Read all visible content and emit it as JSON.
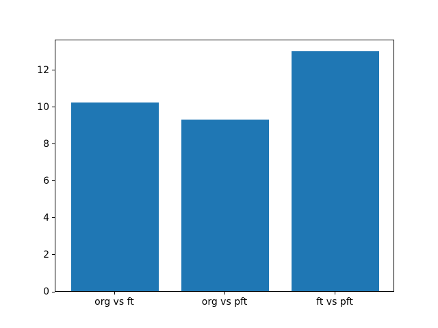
{
  "figure": {
    "background": "#ffffff",
    "axis_color": "#000000"
  },
  "chart_data": {
    "type": "bar",
    "categories": [
      "org vs ft",
      "org vs pft",
      "ft vs pft"
    ],
    "values": [
      10.2,
      9.3,
      13.0
    ],
    "title": "",
    "xlabel": "",
    "ylabel": "",
    "yticks": [
      0,
      2,
      4,
      6,
      8,
      10,
      12
    ],
    "ylim": [
      0,
      13.65
    ],
    "bar_color": "#1f77b4",
    "bar_width_fraction": 0.8,
    "x_margin": 0.54,
    "grid": false,
    "legend": null
  }
}
